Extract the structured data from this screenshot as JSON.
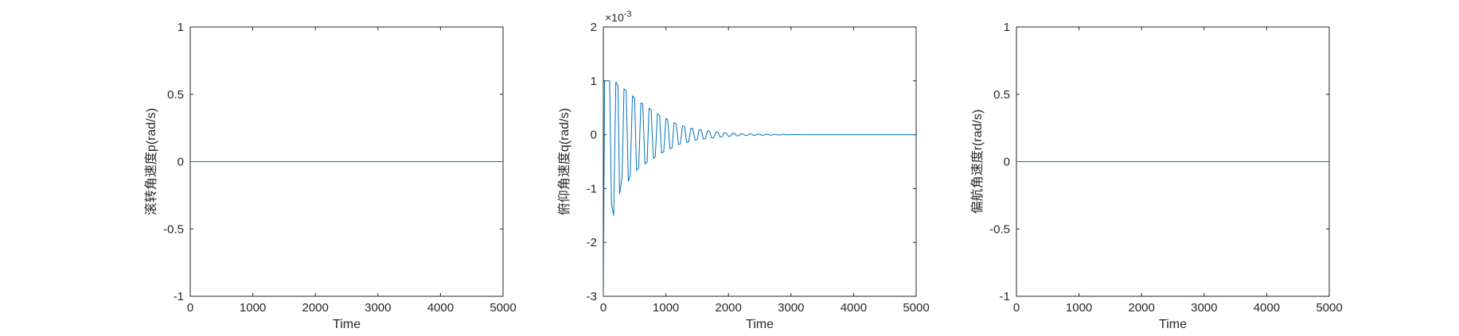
{
  "chart_data": [
    {
      "type": "line",
      "xlabel": "Time",
      "ylabel": "滚转角速度p(rad/s)",
      "xlim": [
        0,
        5000
      ],
      "ylim": [
        -1,
        1
      ],
      "xticks": [
        "0",
        "1000",
        "2000",
        "3000",
        "4000",
        "5000"
      ],
      "yticks": [
        "-1",
        "-0.5",
        "0",
        "0.5",
        "1"
      ],
      "exponent": "",
      "series": [
        {
          "x": [
            0,
            5000
          ],
          "y": [
            0,
            0
          ]
        }
      ],
      "grid": false,
      "color": "#0072bd"
    },
    {
      "type": "line",
      "xlabel": "Time",
      "ylabel": "俯仰角速度q(rad/s)",
      "xlim": [
        0,
        5000
      ],
      "ylim": [
        -0.003,
        0.002
      ],
      "xticks": [
        "0",
        "1000",
        "2000",
        "3000",
        "4000",
        "5000"
      ],
      "yticks": [
        "-3",
        "-2",
        "-1",
        "0",
        "1",
        "2"
      ],
      "exponent": "×10",
      "exponent_power": "-3",
      "series": [
        {
          "x": [
            0,
            10,
            20,
            30,
            60,
            100,
            130,
            165,
            200,
            235,
            260,
            300,
            330,
            365,
            400,
            430,
            465,
            500,
            530,
            565,
            600,
            630,
            665,
            700,
            730,
            765,
            800,
            830,
            865,
            900,
            930,
            965,
            1000,
            1030,
            1065,
            1100,
            1130,
            1165,
            1200,
            1230,
            1265,
            1300,
            1330,
            1365,
            1400,
            1430,
            1465,
            1500,
            1530,
            1565,
            1600,
            1630,
            1665,
            1700,
            1730,
            1765,
            1800,
            1830,
            1865,
            1900,
            1930,
            1965,
            2000,
            2030,
            2065,
            2100,
            2130,
            2165,
            2200,
            2230,
            2265,
            2300,
            2330,
            2365,
            2400,
            2430,
            2465,
            2500,
            2530,
            2565,
            2600,
            2630,
            2665,
            2700,
            2730,
            2765,
            2800,
            2830,
            2865,
            2900,
            2930,
            2965,
            3000,
            3100,
            3200,
            3300,
            3400,
            3500,
            3600,
            3700,
            3800,
            3900,
            4000,
            4200,
            4400,
            4600,
            4800,
            5000
          ],
          "y": [
            -0.003,
            -0.001,
            0.001,
            0.001,
            0.001,
            0.001,
            -0.0013,
            -0.0015,
            0.00098,
            0.0009,
            -0.0011,
            -0.00078,
            0.00085,
            0.00082,
            -0.00087,
            -0.00075,
            0.00072,
            0.00068,
            -0.00066,
            -0.00062,
            0.00059,
            0.00057,
            -0.00054,
            -0.00051,
            0.00049,
            0.00046,
            -0.00044,
            -0.00041,
            0.00039,
            0.00036,
            -0.00034,
            -0.00032,
            0.0003,
            0.00028,
            -0.00026,
            -0.00024,
            0.00022,
            0.0002,
            -0.00018,
            -0.00017,
            0.00016,
            0.00015,
            -0.00014,
            -0.00013,
            0.00012,
            0.00011,
            -0.0001,
            -9.5e-05,
            9e-05,
            8.5e-05,
            -8e-05,
            -7.5e-05,
            7e-05,
            6.5e-05,
            -6e-05,
            -5.5e-05,
            5e-05,
            4.6e-05,
            -4.2e-05,
            -3.8e-05,
            3.5e-05,
            3.2e-05,
            -3e-05,
            -2.7e-05,
            2.5e-05,
            2.3e-05,
            -2.1e-05,
            -1.9e-05,
            1.7e-05,
            1.6e-05,
            -1.5e-05,
            -1.4e-05,
            1.3e-05,
            1.2e-05,
            -1.1e-05,
            -1e-05,
            1e-05,
            9e-06,
            -9e-06,
            -8e-06,
            8e-06,
            7e-06,
            -7e-06,
            -6e-06,
            6e-06,
            5e-06,
            -5e-06,
            -4e-06,
            4e-06,
            3e-06,
            -3e-06,
            -3e-06,
            2e-06,
            1e-06,
            -1e-06,
            0,
            0,
            0,
            0,
            0,
            0,
            0,
            0,
            0,
            0,
            0,
            0,
            0
          ]
        }
      ],
      "grid": false,
      "color": "#0072bd"
    },
    {
      "type": "line",
      "xlabel": "Time",
      "ylabel": "偏航角速度r(rad/s)",
      "xlim": [
        0,
        5000
      ],
      "ylim": [
        -1,
        1
      ],
      "xticks": [
        "0",
        "1000",
        "2000",
        "3000",
        "4000",
        "5000"
      ],
      "yticks": [
        "-1",
        "-0.5",
        "0",
        "0.5",
        "1"
      ],
      "exponent": "",
      "series": [
        {
          "x": [
            0,
            5000
          ],
          "y": [
            0,
            0
          ]
        }
      ],
      "grid": false,
      "color": "#0072bd"
    }
  ]
}
